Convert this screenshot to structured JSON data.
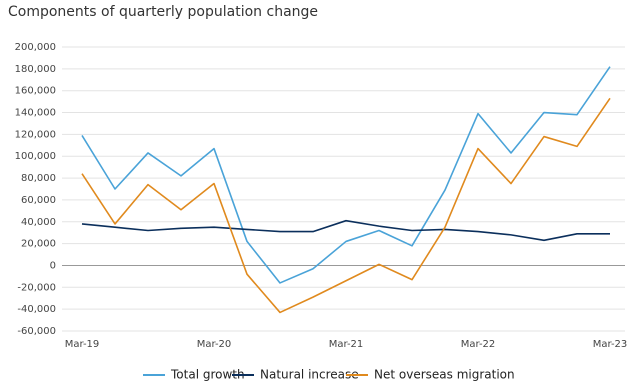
{
  "chart_data": {
    "type": "line",
    "title": "Components of quarterly population change",
    "categories": [
      "Mar-19",
      null,
      null,
      null,
      "Mar-20",
      null,
      null,
      null,
      "Mar-21",
      null,
      null,
      null,
      "Mar-22",
      null,
      null,
      null,
      "Mar-23"
    ],
    "series": [
      {
        "name": "Total growth",
        "color": "#4aa3d8",
        "values": [
          119000,
          70000,
          103000,
          82000,
          107000,
          22000,
          -16000,
          -3000,
          22000,
          32000,
          18000,
          69000,
          139000,
          103000,
          140000,
          138000,
          182000
        ]
      },
      {
        "name": "Natural increase",
        "color": "#0b2f5c",
        "values": [
          38000,
          35000,
          32000,
          34000,
          35000,
          33000,
          31000,
          31000,
          41000,
          36000,
          32000,
          33000,
          31000,
          28000,
          23000,
          29000,
          29000
        ]
      },
      {
        "name": "Net overseas migration",
        "color": "#e08a1e",
        "values": [
          84000,
          38000,
          74000,
          51000,
          75000,
          -8000,
          -43000,
          -29000,
          -14000,
          1000,
          -13000,
          35000,
          107000,
          75000,
          118000,
          109000,
          153000
        ]
      }
    ],
    "ylim": [
      -60000,
      200000
    ],
    "yticks": [
      {
        "value": -60000,
        "label": "-60,000"
      },
      {
        "value": -40000,
        "label": "-40,000"
      },
      {
        "value": -20000,
        "label": "-20,000"
      },
      0,
      {
        "value": 20000,
        "label": "20,000"
      },
      {
        "value": 40000,
        "label": "40,000"
      },
      {
        "value": 60000,
        "label": "60,000"
      },
      {
        "value": 80000,
        "label": "80,000"
      },
      {
        "value": 100000,
        "label": "100,000"
      },
      {
        "value": 120000,
        "label": "120,000"
      },
      {
        "value": 140000,
        "label": "140,000"
      },
      {
        "value": 160000,
        "label": "160,000"
      },
      {
        "value": 180000,
        "label": "180,000"
      },
      {
        "value": 200000,
        "label": "200,000"
      }
    ],
    "grid": true,
    "legend": "bottom"
  }
}
